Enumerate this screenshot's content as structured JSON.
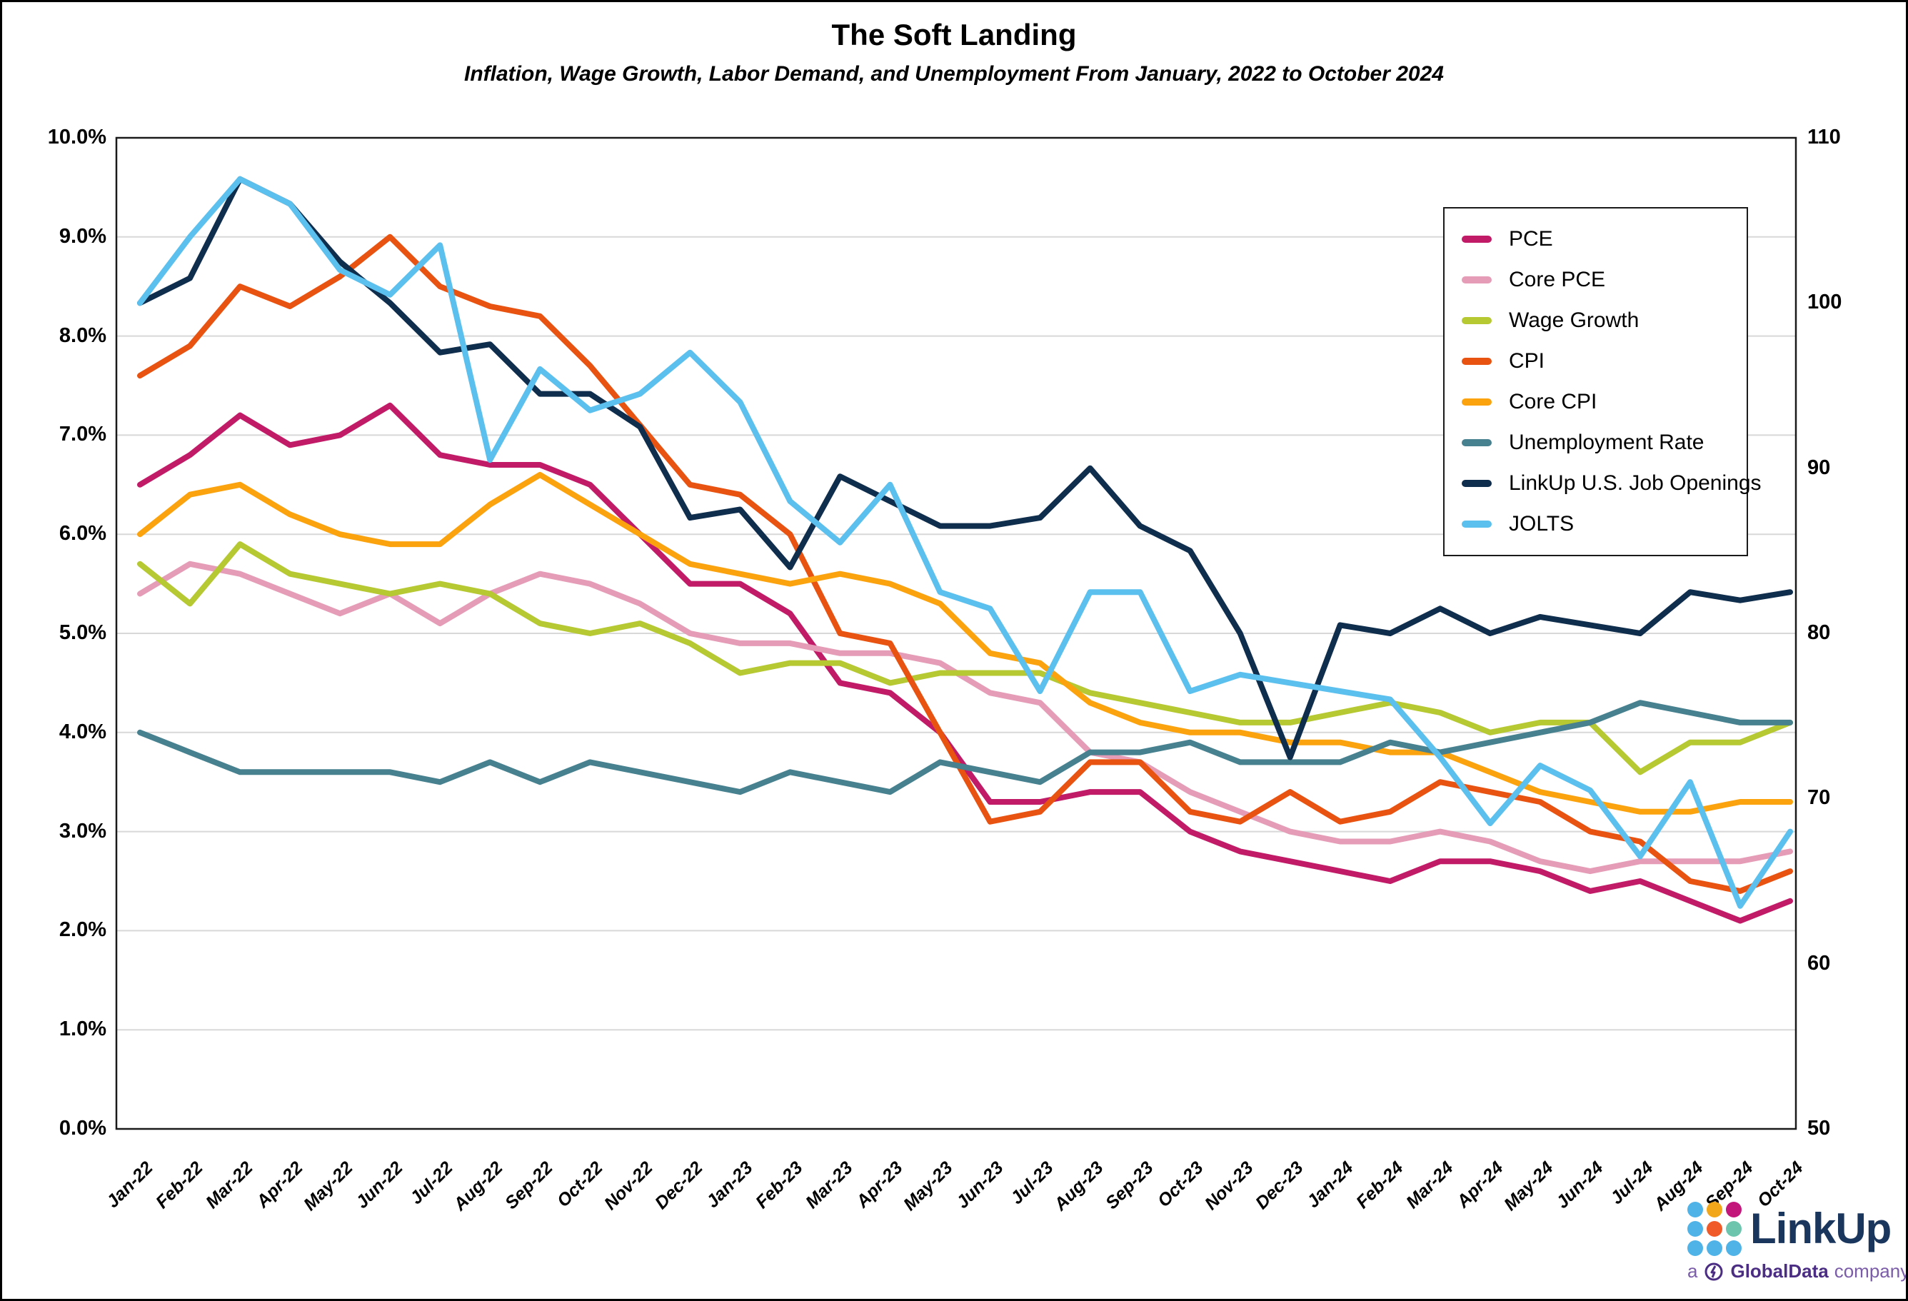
{
  "header": {
    "title": "The Soft Landing",
    "subtitle": "Inflation, Wage Growth, Labor Demand, and Unemployment From January, 2022 to October 2024"
  },
  "chart_data": {
    "type": "line",
    "title": "The Soft Landing",
    "subtitle": "Inflation, Wage Growth, Labor Demand, and Unemployment From January, 2022 to October 2024",
    "grid": true,
    "legend_position": "upper right",
    "left_axis": {
      "min": 0,
      "max": 10,
      "step": 1,
      "format": "percent",
      "tick_labels": [
        "0.0%",
        "1.0%",
        "2.0%",
        "3.0%",
        "4.0%",
        "5.0%",
        "6.0%",
        "7.0%",
        "8.0%",
        "9.0%",
        "10.0%"
      ]
    },
    "right_axis": {
      "min": 50,
      "max": 110,
      "step": 10,
      "tick_labels": [
        "50",
        "60",
        "70",
        "80",
        "90",
        "100",
        "110"
      ]
    },
    "categories": [
      "Jan-22",
      "Feb-22",
      "Mar-22",
      "Apr-22",
      "May-22",
      "Jun-22",
      "Jul-22",
      "Aug-22",
      "Sep-22",
      "Oct-22",
      "Nov-22",
      "Dec-22",
      "Jan-23",
      "Feb-23",
      "Mar-23",
      "Apr-23",
      "May-23",
      "Jun-23",
      "Jul-23",
      "Aug-23",
      "Sep-23",
      "Oct-23",
      "Nov-23",
      "Dec-23",
      "Jan-24",
      "Feb-24",
      "Mar-24",
      "Apr-24",
      "May-24",
      "Jun-24",
      "Jul-24",
      "Aug-24",
      "Sep-24",
      "Oct-24"
    ],
    "series": [
      {
        "name": "PCE",
        "slug": "pce",
        "axis": "left",
        "color": "#C11A67",
        "values": [
          6.5,
          6.8,
          7.2,
          6.9,
          7.0,
          7.3,
          6.8,
          6.7,
          6.7,
          6.5,
          6.0,
          5.5,
          5.5,
          5.2,
          4.5,
          4.4,
          4.0,
          3.3,
          3.3,
          3.4,
          3.4,
          3.0,
          2.8,
          2.7,
          2.6,
          2.5,
          2.7,
          2.7,
          2.6,
          2.4,
          2.5,
          2.3,
          2.1,
          2.3
        ]
      },
      {
        "name": "Core PCE",
        "slug": "core-pce",
        "axis": "left",
        "color": "#E59CB6",
        "values": [
          5.4,
          5.7,
          5.6,
          5.4,
          5.2,
          5.4,
          5.1,
          5.4,
          5.6,
          5.5,
          5.3,
          5.0,
          4.9,
          4.9,
          4.8,
          4.8,
          4.7,
          4.4,
          4.3,
          3.8,
          3.7,
          3.4,
          3.2,
          3.0,
          2.9,
          2.9,
          3.0,
          2.9,
          2.7,
          2.6,
          2.7,
          2.7,
          2.7,
          2.8
        ]
      },
      {
        "name": "Wage Growth",
        "slug": "wage-growth",
        "axis": "left",
        "color": "#B6C832",
        "values": [
          5.7,
          5.3,
          5.9,
          5.6,
          5.5,
          5.4,
          5.5,
          5.4,
          5.1,
          5.0,
          5.1,
          4.9,
          4.6,
          4.7,
          4.7,
          4.5,
          4.6,
          4.6,
          4.6,
          4.4,
          4.3,
          4.2,
          4.1,
          4.1,
          4.2,
          4.3,
          4.2,
          4.0,
          4.1,
          4.1,
          3.6,
          3.9,
          3.9,
          4.1
        ]
      },
      {
        "name": "CPI",
        "slug": "cpi",
        "axis": "left",
        "color": "#E85311",
        "values": [
          7.6,
          7.9,
          8.5,
          8.3,
          8.6,
          9.0,
          8.5,
          8.3,
          8.2,
          7.7,
          7.1,
          6.5,
          6.4,
          6.0,
          5.0,
          4.9,
          4.0,
          3.1,
          3.2,
          3.7,
          3.7,
          3.2,
          3.1,
          3.4,
          3.1,
          3.2,
          3.5,
          3.4,
          3.3,
          3.0,
          2.9,
          2.5,
          2.4,
          2.6
        ]
      },
      {
        "name": "Core CPI",
        "slug": "core-cpi",
        "axis": "left",
        "color": "#FBA30F",
        "values": [
          6.0,
          6.4,
          6.5,
          6.2,
          6.0,
          5.9,
          5.9,
          6.3,
          6.6,
          6.3,
          6.0,
          5.7,
          5.6,
          5.5,
          5.6,
          5.5,
          5.3,
          4.8,
          4.7,
          4.3,
          4.1,
          4.0,
          4.0,
          3.9,
          3.9,
          3.8,
          3.8,
          3.6,
          3.4,
          3.3,
          3.2,
          3.2,
          3.3,
          3.3
        ]
      },
      {
        "name": "Unemployment Rate",
        "slug": "unemployment-rate",
        "axis": "left",
        "color": "#47818F",
        "values": [
          4.0,
          3.8,
          3.6,
          3.6,
          3.6,
          3.6,
          3.5,
          3.7,
          3.5,
          3.7,
          3.6,
          3.5,
          3.4,
          3.6,
          3.5,
          3.4,
          3.7,
          3.6,
          3.5,
          3.8,
          3.8,
          3.9,
          3.7,
          3.7,
          3.7,
          3.9,
          3.8,
          3.9,
          4.0,
          4.1,
          4.3,
          4.2,
          4.1,
          4.1
        ]
      },
      {
        "name": "LinkUp U.S. Job Openings",
        "slug": "linkup-job-openings",
        "axis": "right",
        "color": "#0F2D4C",
        "values": [
          100,
          101.5,
          107.5,
          106,
          102.5,
          100,
          97,
          97.5,
          94.5,
          94.5,
          92.5,
          87,
          87.5,
          84,
          89.5,
          88,
          86.5,
          86.5,
          87,
          90,
          86.5,
          85,
          80,
          72.5,
          80.5,
          80,
          81.5,
          80,
          81,
          80.5,
          80,
          82.5,
          82,
          82.5
        ]
      },
      {
        "name": "JOLTS",
        "slug": "jolts",
        "axis": "right",
        "color": "#5BC0EE",
        "values": [
          100,
          104,
          107.5,
          106,
          102,
          100.5,
          103.5,
          90.5,
          96,
          93.5,
          94.5,
          97,
          94,
          88,
          85.5,
          89,
          82.5,
          81.5,
          76.5,
          82.5,
          82.5,
          76.5,
          77.5,
          77,
          76.5,
          76,
          72.5,
          68.5,
          72,
          70.5,
          66.5,
          71,
          63.5,
          68
        ]
      }
    ],
    "style": {
      "grid_color": "#D8D8D8",
      "axis_border_color": "#1a1a1a",
      "background": "#ffffff",
      "line_width": 8
    }
  },
  "logo": {
    "brand": "LinkUp",
    "tagline_prefix": "a",
    "tagline_brand": "GlobalData",
    "tagline_suffix": "company",
    "brand_color": "#1b365d",
    "tagline_color": "#4b2e83",
    "dot_colors": [
      "#4FB3E8",
      "#F2A71B",
      "#C4177C",
      "#4FB3E8",
      "#F05A28",
      "#6DC5AD",
      "#4FB3E8",
      "#4FB3E8",
      "#4FB3E8"
    ]
  }
}
